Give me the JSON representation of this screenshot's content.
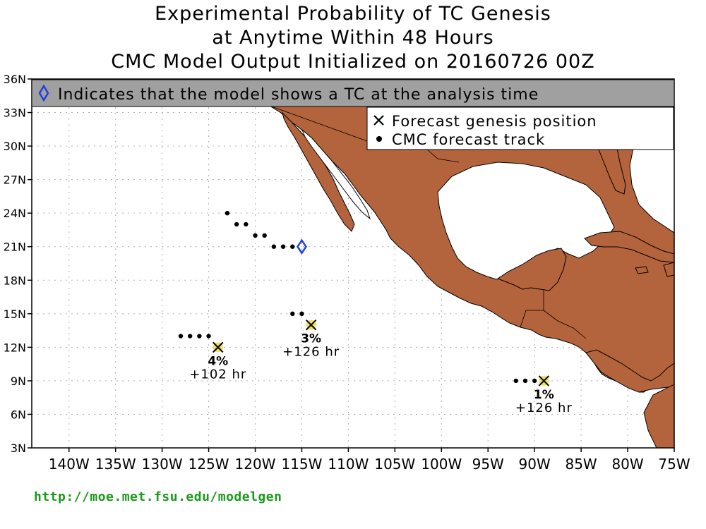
{
  "title": {
    "line1": "Experimental Probability of TC Genesis",
    "line2": "at Anytime Within 48 Hours",
    "line3": "CMC Model Output Initialized on 20160726 00Z"
  },
  "banner": {
    "text": "Indicates that the model shows a TC at the analysis time",
    "icon": "diamond-icon",
    "background": "#a0a0a0"
  },
  "legend": {
    "genesis_label": "Forecast genesis position",
    "track_label": "CMC forecast track",
    "genesis_icon": "x-icon",
    "track_icon": "dot-icon"
  },
  "axes": {
    "lat_labels": [
      "36N",
      "33N",
      "30N",
      "27N",
      "24N",
      "21N",
      "18N",
      "15N",
      "12N",
      "9N",
      "6N",
      "3N"
    ],
    "lon_labels": [
      "140W",
      "135W",
      "130W",
      "125W",
      "120W",
      "115W",
      "110W",
      "105W",
      "100W",
      "95W",
      "90W",
      "85W",
      "80W",
      "75W"
    ],
    "lat_range": [
      3,
      36
    ],
    "lon_range": [
      -144,
      -75
    ],
    "grid": true
  },
  "colors": {
    "land": "#b4643c",
    "genesis_marker": "#f0e060",
    "analysis_marker": "#2040e0",
    "url": "#1a9a1a"
  },
  "analysis_tc": {
    "lon": -115,
    "lat": 21
  },
  "tracks": [
    {
      "points": [
        [
          -123,
          24
        ],
        [
          -122,
          23
        ],
        [
          -121,
          23
        ],
        [
          -120,
          22
        ],
        [
          -119,
          22
        ],
        [
          -118,
          21
        ],
        [
          -117,
          21
        ],
        [
          -116,
          21
        ]
      ]
    },
    {
      "points": [
        [
          -116,
          15
        ],
        [
          -115,
          15
        ]
      ]
    },
    {
      "points": [
        [
          -128,
          13
        ],
        [
          -127,
          13
        ],
        [
          -126,
          13
        ],
        [
          -125,
          13
        ]
      ]
    },
    {
      "points": [
        [
          -92,
          9
        ],
        [
          -91,
          9
        ],
        [
          -90,
          9
        ]
      ]
    }
  ],
  "genesis": [
    {
      "lon": -124,
      "lat": 12,
      "prob": "4%",
      "hour": "+102 hr"
    },
    {
      "lon": -114,
      "lat": 14,
      "prob": "3%",
      "hour": "+126 hr"
    },
    {
      "lon": -89,
      "lat": 9,
      "prob": "1%",
      "hour": "+126 hr"
    }
  ],
  "footer_url": "http://moe.met.fsu.edu/modelgen"
}
